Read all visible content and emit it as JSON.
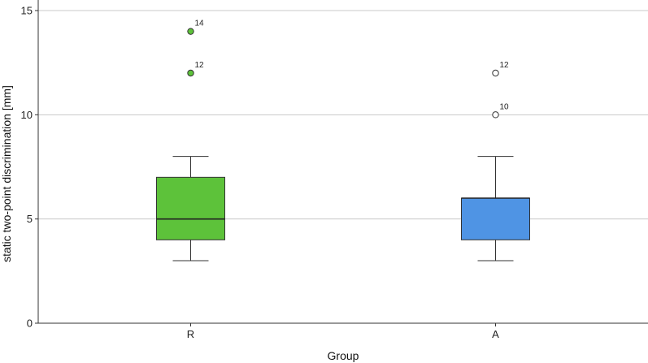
{
  "chart_data": {
    "type": "boxplot",
    "xlabel": "Group",
    "ylabel": "static two-point discrimination [mm]",
    "ylim": [
      0,
      15
    ],
    "yticks": [
      0,
      5,
      10,
      15
    ],
    "grid": true,
    "categories": [
      "R",
      "A"
    ],
    "boxes": [
      {
        "category": "R",
        "color": "#5DC23A",
        "whisker_low": 3,
        "q1": 4,
        "median": 5,
        "q3": 7,
        "whisker_high": 8,
        "outliers": [
          {
            "value": 14,
            "label": "14",
            "filled": true
          },
          {
            "value": 12,
            "label": "12",
            "filled": true
          }
        ]
      },
      {
        "category": "A",
        "color": "#4F94E4",
        "whisker_low": 3,
        "q1": 4,
        "median": 6,
        "q3": 6,
        "whisker_high": 8,
        "outliers": [
          {
            "value": 12,
            "label": "12",
            "filled": false
          },
          {
            "value": 10,
            "label": "10",
            "filled": false
          }
        ]
      }
    ]
  }
}
